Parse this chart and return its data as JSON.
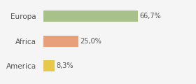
{
  "categories": [
    "Europa",
    "Africa",
    "America"
  ],
  "values": [
    66.7,
    25.0,
    8.3
  ],
  "labels": [
    "66,7%",
    "25,0%",
    "8,3%"
  ],
  "bar_colors": [
    "#a8c08a",
    "#e8a07a",
    "#e8c84a"
  ],
  "background_color": "#f5f5f5",
  "figsize": [
    2.8,
    1.2
  ],
  "dpi": 100,
  "bar_height": 0.45,
  "xlim": [
    0,
    105
  ],
  "label_fontsize": 7.0,
  "tick_fontsize": 7.5
}
